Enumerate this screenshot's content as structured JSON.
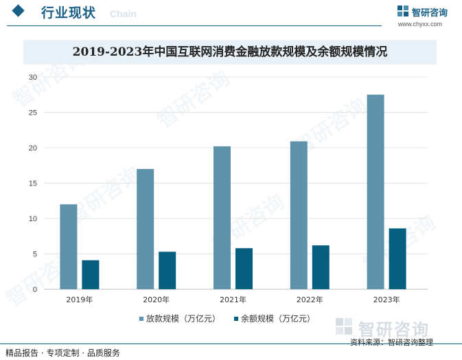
{
  "header": {
    "section_title": "行业现状",
    "section_sub": "Chain",
    "brand_name": "智研咨询",
    "brand_url": "www.chyxx.com"
  },
  "watermark_text": "智研咨询",
  "footer": {
    "source": "资料来源：智研咨询整理",
    "tagline": "精品报告 · 专项定制 · 品质服务"
  },
  "colors": {
    "accent": "#1a5f86",
    "series_1": "#5f92ab",
    "series_2": "#075f7f",
    "title_band": "#e8f1f7"
  },
  "chart_data": {
    "type": "bar",
    "title": "2019-2023年中国互联网消费金融放款规模及余额规模情况",
    "categories": [
      "2019年",
      "2020年",
      "2021年",
      "2022年",
      "2023年"
    ],
    "series": [
      {
        "name": "放款规模（万亿元）",
        "values": [
          12.0,
          17.0,
          20.2,
          20.9,
          27.5
        ]
      },
      {
        "name": "余额规模（万亿元）",
        "values": [
          4.1,
          5.3,
          5.8,
          6.2,
          8.6
        ]
      }
    ],
    "ylim": [
      0,
      30
    ],
    "yticks": [
      0,
      5,
      10,
      15,
      20,
      25,
      30
    ],
    "xlabel": "",
    "ylabel": "",
    "grid": true,
    "legend": "bottom"
  }
}
